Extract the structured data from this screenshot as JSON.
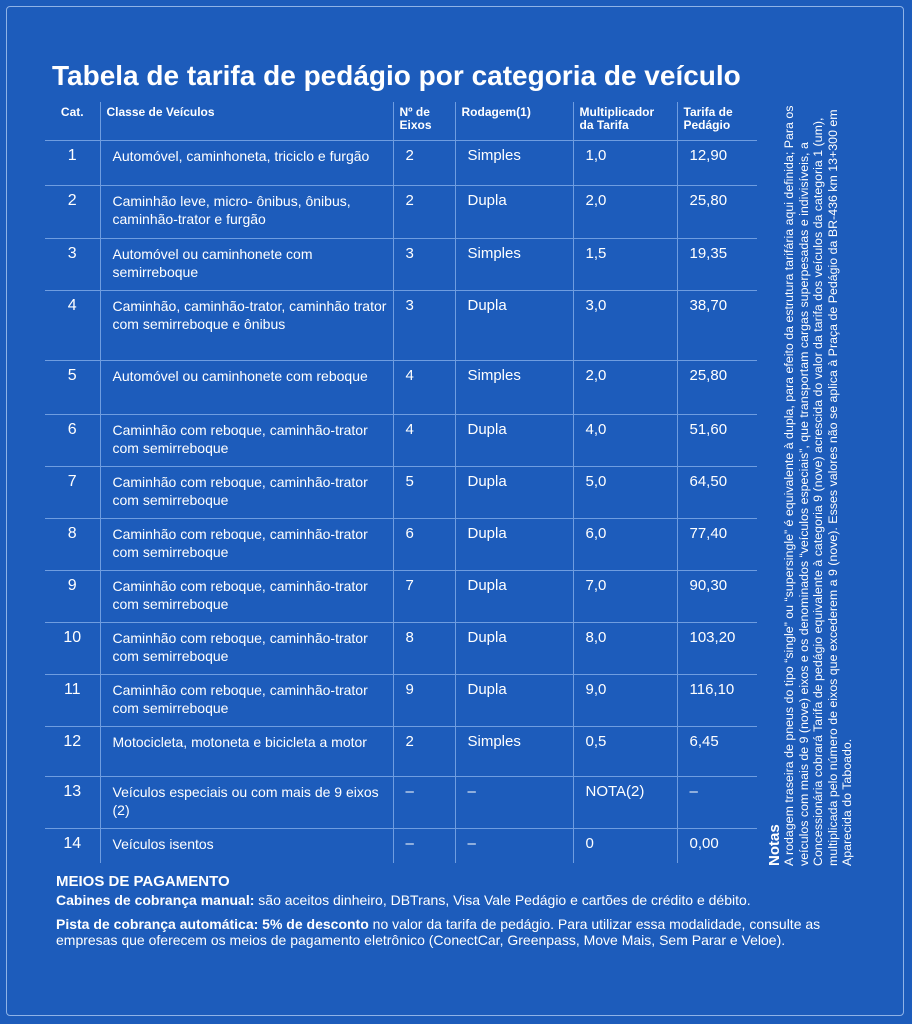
{
  "title": "Tabela de tarifa de pedágio por categoria de veículo",
  "table": {
    "headers": [
      "Cat.",
      "Classe de Veículos",
      "Nº de Eixos",
      "Rodagem(1)",
      "Multiplicador da Tarifa",
      "Tarifa de Pedágio"
    ],
    "rows": [
      [
        "1",
        "Automóvel, caminhoneta, triciclo e furgão",
        "2",
        "Simples",
        "1,0",
        "12,90"
      ],
      [
        "2",
        "Caminhão leve, micro- ônibus, ônibus, caminhão-trator e furgão",
        "2",
        "Dupla",
        "2,0",
        "25,80"
      ],
      [
        "3",
        "Automóvel ou caminhonete com semirreboque",
        "3",
        "Simples",
        "1,5",
        "19,35"
      ],
      [
        "4",
        "Caminhão, caminhão-trator, caminhão trator com semirreboque e ônibus",
        "3",
        "Dupla",
        "3,0",
        "38,70"
      ],
      [
        "5",
        "Automóvel ou caminhonete com reboque",
        "4",
        "Simples",
        "2,0",
        "25,80"
      ],
      [
        "6",
        "Caminhão com reboque, caminhão-trator com semirreboque",
        "4",
        "Dupla",
        "4,0",
        "51,60"
      ],
      [
        "7",
        "Caminhão com reboque, caminhão-trator com semirreboque",
        "5",
        "Dupla",
        "5,0",
        "64,50"
      ],
      [
        "8",
        "Caminhão com reboque, caminhão-trator com semirreboque",
        "6",
        "Dupla",
        "6,0",
        "77,40"
      ],
      [
        "9",
        "Caminhão com reboque, caminhão-trator com semirreboque",
        "7",
        "Dupla",
        "7,0",
        "90,30"
      ],
      [
        "10",
        "Caminhão com reboque, caminhão-trator com semirreboque",
        "8",
        "Dupla",
        "8,0",
        "103,20"
      ],
      [
        "11",
        "Caminhão com reboque, caminhão-trator com semirreboque",
        "9",
        "Dupla",
        "9,0",
        "116,10"
      ],
      [
        "12",
        "Motocicleta, motoneta e bicicleta a motor",
        "2",
        "Simples",
        "0,5",
        "6,45"
      ],
      [
        "13",
        "Veículos especiais ou com mais de 9 eixos (2)",
        "–",
        "–",
        "NOTA(2)",
        "–"
      ],
      [
        "14",
        "Veículos isentos",
        "–",
        "–",
        "0",
        "0,00"
      ]
    ]
  },
  "notes": {
    "title": "Notas",
    "text": "A rodagem traseira de pneus do tipo “single” ou “supersingle” é equivalente à dupla, para efeito da estrutura tarifária aqui definida; Para os veículos com mais de 9 (nove) eixos e os denominados “veículos especiais”, que transportam cargas superpesadas e indivisíveis, a Concessionária cobrará Tarifa de pedágio equivalente à categoria 9 (nove) acrescida do valor da tarifa dos veículos da categoria 1 (um), multiplicada pelo número de eixos que excederem a 9 (nove). Esses valores não se aplica à Praça de Pedágio da BR-436 km 13+300 em Aparecida do Taboado."
  },
  "payment": {
    "title": "MEIOS DE PAGAMENTO",
    "manual_label": "Cabines de cobrança manual:",
    "manual_text": "são aceitos dinheiro, DBTrans, Visa Vale Pedágio e cartões de crédito e débito.",
    "auto_label": "Pista de cobrança automática: 5% de desconto",
    "auto_text": "no valor da tarifa de pedágio. Para utilizar essa modalidade, consulte as empresas que oferecem os meios de pagamento eletrônico (ConectCar, Greenpass, Move Mais, Sem Parar e Veloe)."
  }
}
